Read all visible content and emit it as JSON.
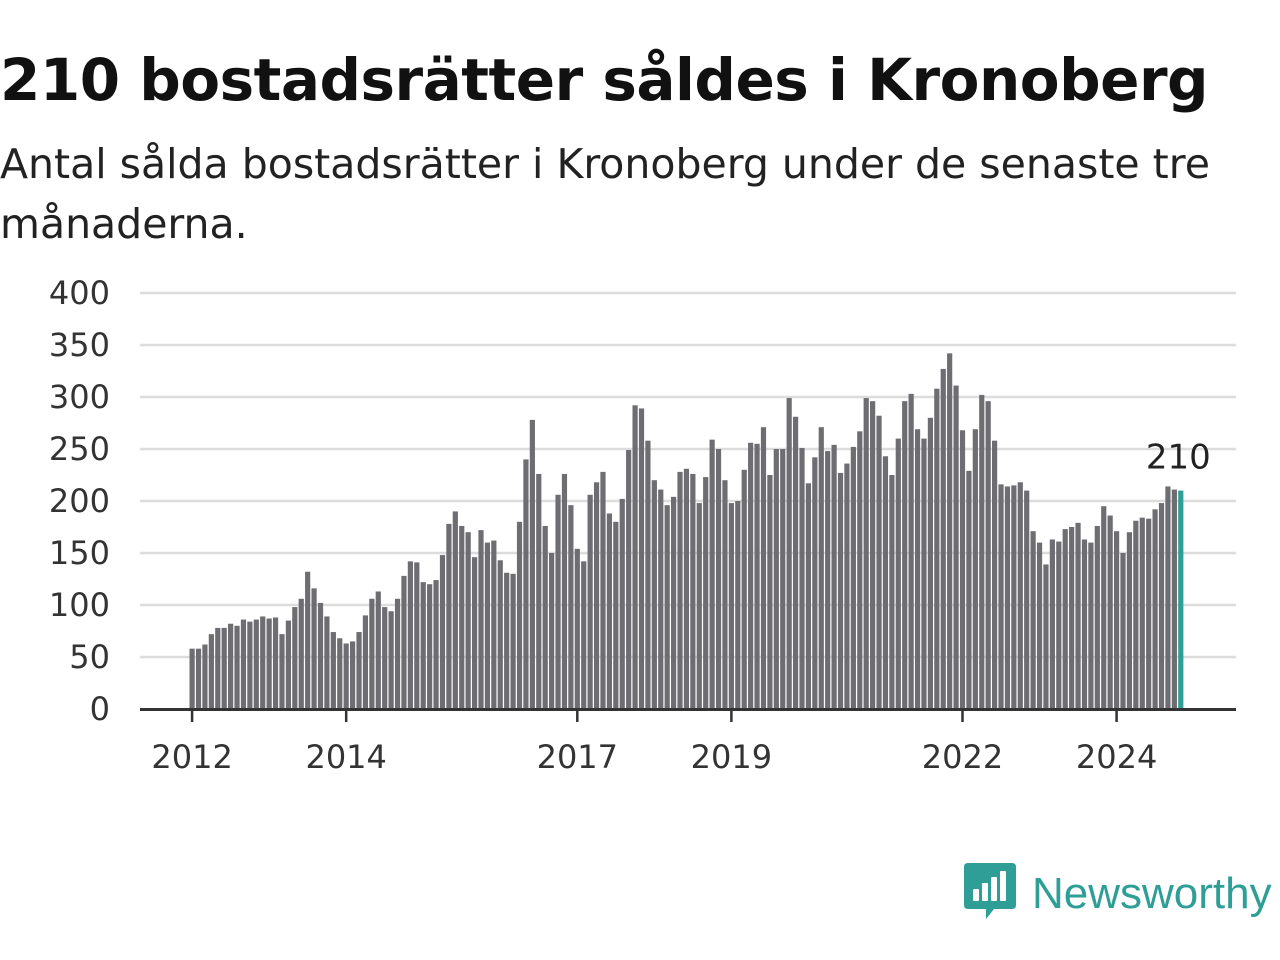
{
  "title": "210 bostadsrätter såldes i Kronoberg",
  "subtitle": "Antal sålda bostadsrätter i Kronoberg under de senaste tre månaderna.",
  "brand": {
    "name": "Newsworthy",
    "icon": "newsworthy-logo-icon",
    "color": "#2f9e96"
  },
  "chart_data": {
    "type": "bar",
    "title": "210 bostadsrätter såldes i Kronoberg",
    "subtitle": "Antal sålda bostadsrätter i Kronoberg under de senaste tre månaderna.",
    "xlabel": "",
    "ylabel": "",
    "ylim": [
      0,
      400
    ],
    "yticks": [
      0,
      50,
      100,
      150,
      200,
      250,
      300,
      350,
      400
    ],
    "grid": true,
    "legend": "none",
    "bar_color": "#6e6d72",
    "highlight_color": "#2f9e96",
    "start": "2012-01",
    "xtick_labels": [
      {
        "label": "2012",
        "index": 0
      },
      {
        "label": "2014",
        "index": 24
      },
      {
        "label": "2017",
        "index": 60
      },
      {
        "label": "2019",
        "index": 84
      },
      {
        "label": "2022",
        "index": 120
      },
      {
        "label": "2024",
        "index": 144
      }
    ],
    "annotation": {
      "text": "210",
      "index": 154
    },
    "values": [
      58,
      58,
      62,
      72,
      78,
      78,
      82,
      80,
      86,
      84,
      86,
      89,
      87,
      88,
      72,
      85,
      98,
      106,
      132,
      116,
      102,
      89,
      74,
      68,
      63,
      65,
      74,
      90,
      106,
      113,
      98,
      94,
      106,
      128,
      142,
      141,
      122,
      120,
      124,
      148,
      178,
      190,
      176,
      170,
      146,
      172,
      160,
      162,
      143,
      131,
      130,
      180,
      240,
      278,
      226,
      176,
      150,
      206,
      226,
      196,
      154,
      142,
      206,
      218,
      228,
      188,
      180,
      202,
      249,
      292,
      289,
      258,
      220,
      211,
      196,
      204,
      228,
      231,
      226,
      198,
      223,
      259,
      250,
      220,
      198,
      200,
      230,
      256,
      255,
      271,
      225,
      250,
      250,
      299,
      281,
      251,
      217,
      242,
      271,
      248,
      254,
      227,
      236,
      252,
      267,
      299,
      296,
      282,
      243,
      225,
      260,
      296,
      303,
      269,
      260,
      280,
      308,
      327,
      342,
      311,
      268,
      229,
      269,
      302,
      296,
      258,
      216,
      214,
      215,
      218,
      210,
      171,
      160,
      139,
      163,
      161,
      173,
      175,
      179,
      163,
      160,
      176,
      195,
      186,
      171,
      150,
      170,
      181,
      184,
      183,
      192,
      198,
      214,
      211,
      210
    ]
  }
}
